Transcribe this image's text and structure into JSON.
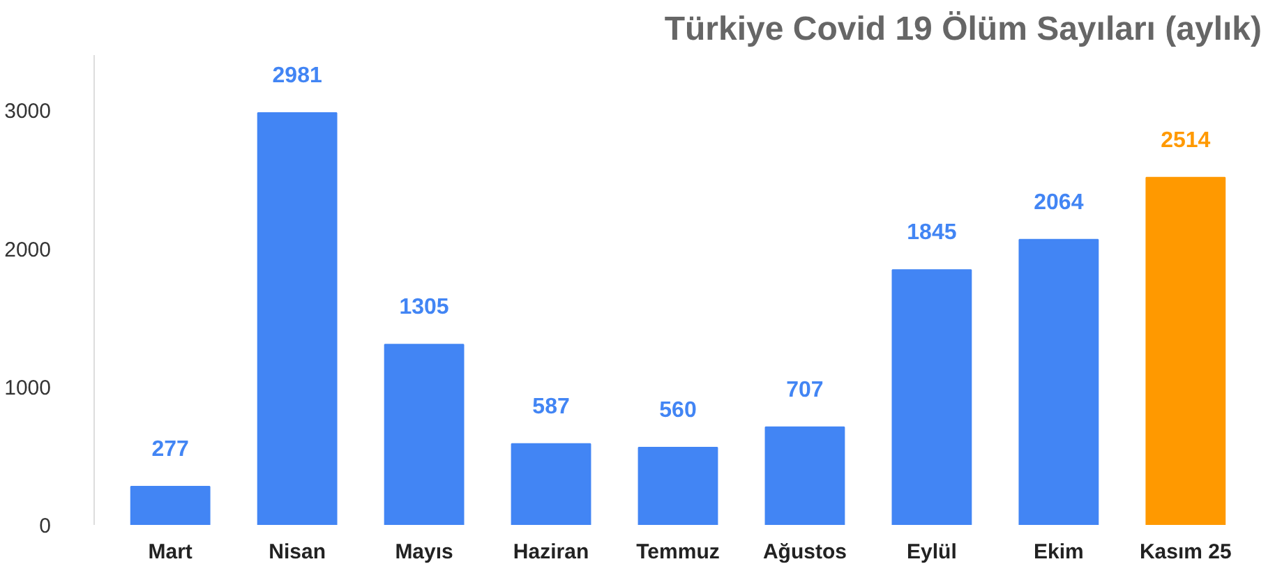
{
  "chart_data": {
    "type": "bar",
    "title": "Türkiye Covid 19 Ölüm Sayıları (aylık)",
    "categories": [
      "Mart",
      "Nisan",
      "Mayıs",
      "Haziran",
      "Temmuz",
      "Ağustos",
      "Eylül",
      "Ekim",
      "Kasım 25"
    ],
    "values": [
      277,
      2981,
      1305,
      587,
      560,
      707,
      1845,
      2064,
      2514
    ],
    "colors": [
      "#4285f4",
      "#4285f4",
      "#4285f4",
      "#4285f4",
      "#4285f4",
      "#4285f4",
      "#4285f4",
      "#4285f4",
      "#ff9900"
    ],
    "ylim": [
      0,
      3400
    ],
    "yticks": [
      0,
      1000,
      2000,
      3000
    ],
    "grid": false,
    "data_labels": true
  }
}
